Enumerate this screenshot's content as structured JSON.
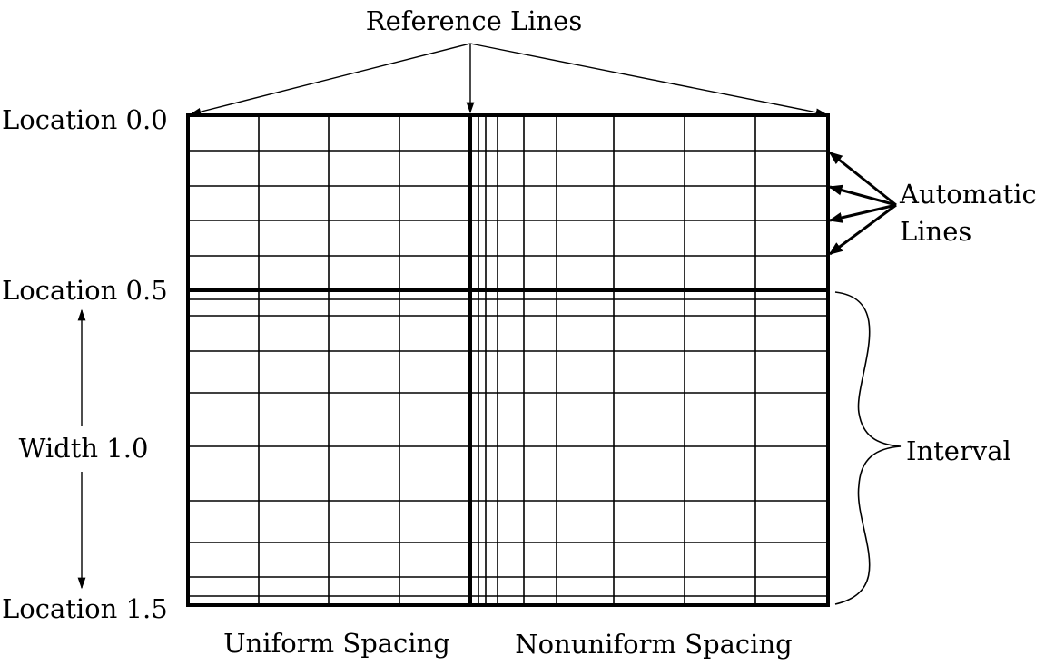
{
  "labels": {
    "reference_lines": "Reference Lines",
    "automatic_lines_line1": "Automatic",
    "automatic_lines_line2": "Lines",
    "location_0_0": "Location 0.0",
    "location_0_5": "Location 0.5",
    "location_1_5": "Location 1.5",
    "width_1_0": "Width 1.0",
    "interval": "Interval",
    "uniform_spacing": "Uniform Spacing",
    "nonuniform_spacing": "Nonuniform Spacing"
  },
  "icons": {
    "pointer": "arrow-icon",
    "width_span": "double-arrow-icon",
    "interval_span": "curly-brace-icon"
  }
}
